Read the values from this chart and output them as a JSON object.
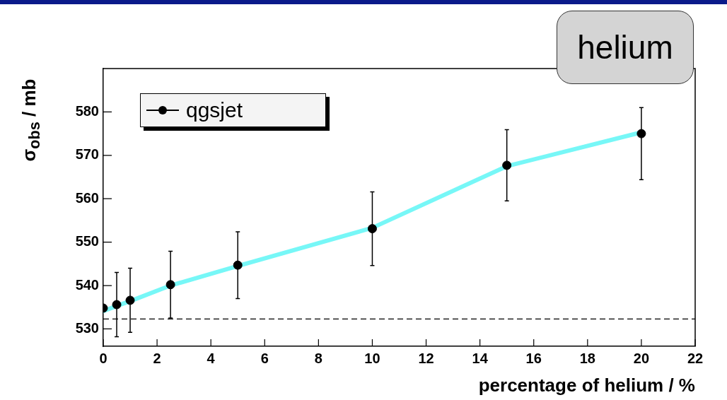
{
  "chart_data": {
    "type": "scatter",
    "title": "helium",
    "xlabel": "percentage of helium / %",
    "ylabel": "σ$_{obs}$ / mb",
    "xlim": [
      0,
      22
    ],
    "xticks": [
      0,
      2,
      4,
      6,
      8,
      10,
      12,
      14,
      16,
      18,
      20,
      22
    ],
    "ylim": [
      526,
      590
    ],
    "yticks": [
      530,
      540,
      550,
      560,
      570,
      580
    ],
    "grid": false,
    "legend": "top left",
    "ref_lines": [
      {
        "axis": "y",
        "value": 532.3,
        "line_style": "dashed",
        "color": "#000000"
      }
    ],
    "series": [
      {
        "type": "line",
        "color": "#77f7f7",
        "marker": "none",
        "line_style": "solid",
        "x": [
          0,
          0.5,
          1,
          2.5,
          5,
          10,
          15,
          20
        ],
        "values": [
          534.1,
          535.3,
          536.4,
          540,
          544.5,
          553.3,
          567.5,
          575.3
        ]
      },
      {
        "name": "qgsjet",
        "type": "scatter",
        "color": "#000000",
        "marker": "circle",
        "x": [
          0,
          0.5,
          1,
          2.5,
          5,
          10,
          15,
          20
        ],
        "values": [
          534.8,
          535.6,
          536.6,
          540.2,
          544.7,
          553.1,
          567.7,
          575
        ],
        "errors": [
          null,
          7.4,
          7.4,
          7.7,
          7.7,
          8.5,
          8.2,
          [
            564.4,
            581
          ]
        ]
      }
    ]
  }
}
